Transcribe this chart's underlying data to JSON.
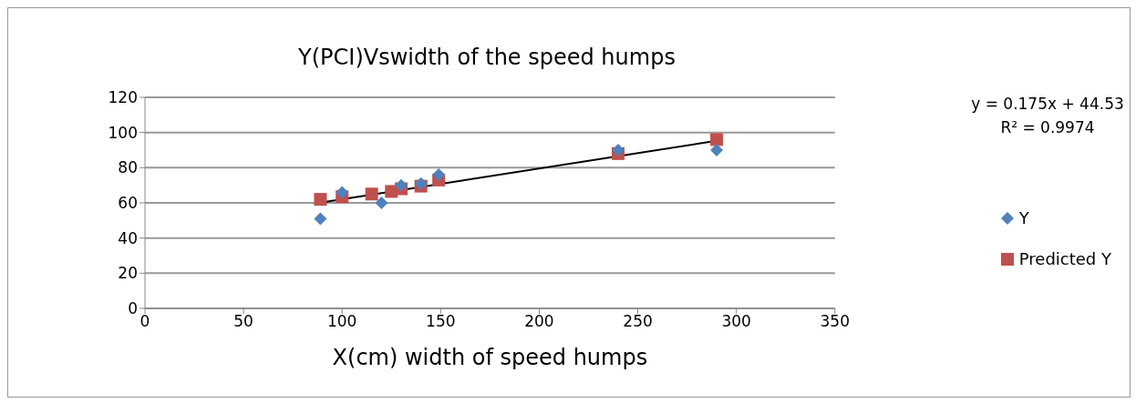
{
  "chart_data": {
    "type": "scatter",
    "title": "Y(PCI)Vswidth of the speed humps",
    "xlabel": "X(cm) width of speed humps",
    "xlim": [
      0,
      350
    ],
    "xticks": [
      0,
      50,
      100,
      150,
      200,
      250,
      300,
      350
    ],
    "ylim": [
      0,
      120
    ],
    "yticks": [
      0,
      20,
      40,
      60,
      80,
      100,
      120
    ],
    "grid": "y",
    "legend": "right",
    "annotations": [
      "y = 0.175x + 44.53",
      "R² = 0.9974"
    ],
    "series": [
      {
        "name": "Predicted Y",
        "color": "#c0504d",
        "marker": "square",
        "x": [
          89,
          100,
          115,
          125,
          130,
          140,
          149,
          240,
          290
        ],
        "values": [
          62,
          63.5,
          65,
          66.5,
          68,
          69.5,
          73,
          88,
          96
        ]
      },
      {
        "name": "Y",
        "color": "#4f81bd",
        "marker": "diamond",
        "x": [
          89,
          100,
          120,
          130,
          140,
          149,
          240,
          290
        ],
        "values": [
          51,
          66,
          60,
          70,
          71,
          76,
          90,
          90
        ]
      },
      {
        "type": "line",
        "color": "#000000",
        "marker": "none",
        "x": [
          89,
          290
        ],
        "values": [
          60.1,
          95.3
        ]
      }
    ]
  }
}
